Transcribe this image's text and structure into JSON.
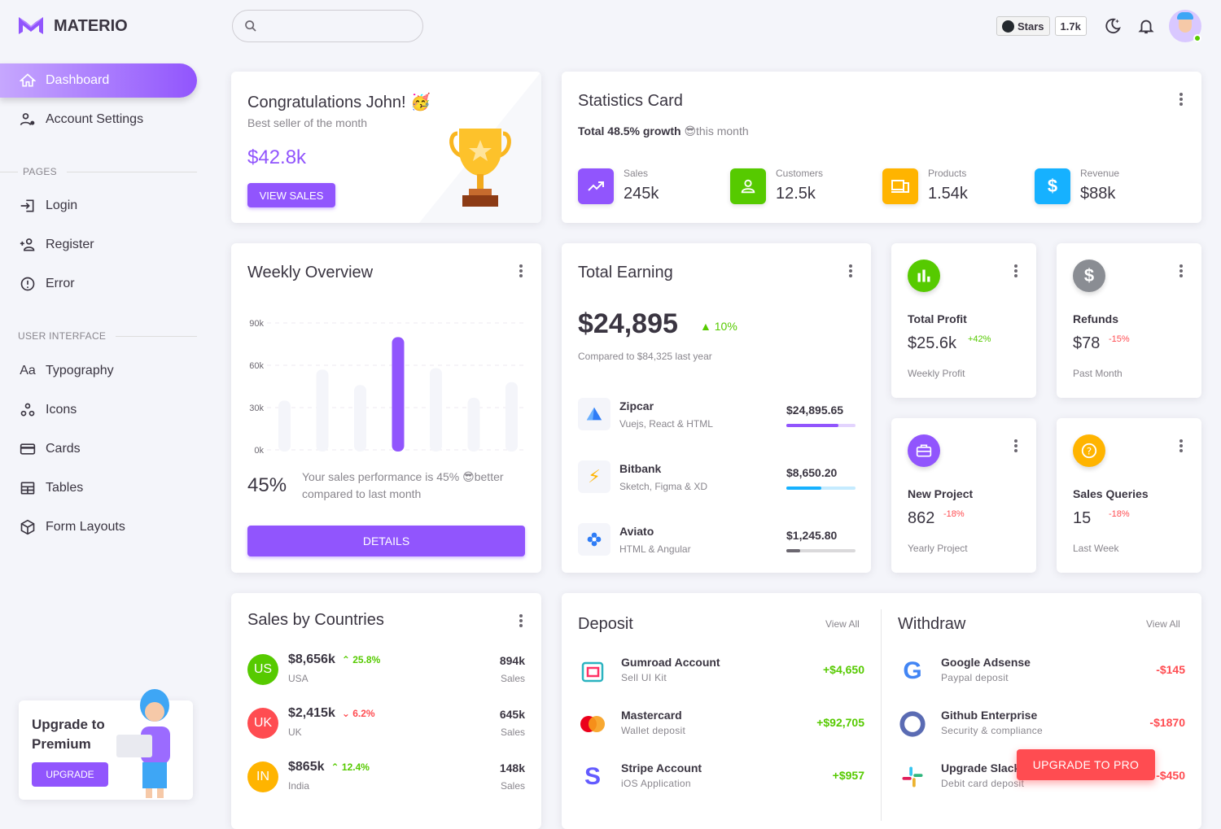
{
  "brand": {
    "name": "MATERIO"
  },
  "sidebar": {
    "items": [
      {
        "label": "Dashboard",
        "icon": "home-icon",
        "active": true
      },
      {
        "label": "Account Settings",
        "icon": "account-cog-icon"
      }
    ],
    "sections": [
      {
        "title": "PAGES",
        "items": [
          {
            "label": "Login",
            "icon": "login-icon"
          },
          {
            "label": "Register",
            "icon": "account-plus-icon"
          },
          {
            "label": "Error",
            "icon": "alert-circle-icon"
          }
        ]
      },
      {
        "title": "USER INTERFACE",
        "items": [
          {
            "label": "Typography",
            "icon": "format-letter-case-icon"
          },
          {
            "label": "Icons",
            "icon": "google-circles-icon"
          },
          {
            "label": "Cards",
            "icon": "credit-card-icon"
          },
          {
            "label": "Tables",
            "icon": "table-icon"
          },
          {
            "label": "Form Layouts",
            "icon": "cube-outline-icon"
          }
        ]
      }
    ],
    "upgrade": {
      "title": "Upgrade to Premium",
      "button": "UPGRADE"
    }
  },
  "header": {
    "search_placeholder": "",
    "github": {
      "label": "Stars",
      "count": "1.7k"
    }
  },
  "congrats": {
    "title": "Congratulations John! 🥳",
    "subtitle": "Best seller of the month",
    "amount": "$42.8k",
    "button": "VIEW SALES"
  },
  "statistics": {
    "title": "Statistics Card",
    "growth_bold": "Total 48.5% growth",
    "growth_rest": "😎this month",
    "items": [
      {
        "label": "Sales",
        "value": "245k",
        "color": "#9155FD",
        "icon": "trending-up-icon"
      },
      {
        "label": "Customers",
        "value": "12.5k",
        "color": "#56CA00",
        "icon": "account-icon"
      },
      {
        "label": "Products",
        "value": "1.54k",
        "color": "#FFB400",
        "icon": "cellphone-link-icon"
      },
      {
        "label": "Revenue",
        "value": "$88k",
        "color": "#16B1FF",
        "icon": "currency-usd-icon"
      }
    ]
  },
  "weekly": {
    "title": "Weekly Overview",
    "percent": "45%",
    "text": "Your sales performance is 45% 😎better compared to last month",
    "button": "DETAILS",
    "chart_data": {
      "type": "bar",
      "y_ticks": [
        "90k",
        "60k",
        "30k",
        "0k"
      ],
      "ylim": [
        0,
        90000
      ],
      "values": [
        35000,
        57000,
        46000,
        80000,
        58000,
        37000,
        48000
      ],
      "highlight_index": 3,
      "highlight_color": "#9155FD",
      "base_color": "#F4F5FA",
      "grid": true
    }
  },
  "earning": {
    "title": "Total Earning",
    "amount": "$24,895",
    "change": "10%",
    "compare": "Compared to $84,325 last year",
    "items": [
      {
        "name": "Zipcar",
        "sub": "Vuejs, React & HTML",
        "amount": "$24,895.65",
        "progress": 75,
        "color": "#9155FD",
        "icon": "zipcar-logo-icon"
      },
      {
        "name": "Bitbank",
        "sub": "Sketch, Figma & XD",
        "amount": "$8,650.20",
        "progress": 50,
        "color": "#16B1FF",
        "icon": "bitbank-logo-icon"
      },
      {
        "name": "Aviato",
        "sub": "HTML & Angular",
        "amount": "$1,245.80",
        "progress": 20,
        "color": "#6b6770",
        "icon": "aviato-logo-icon"
      }
    ]
  },
  "mini": [
    {
      "title": "Total Profit",
      "value": "$25.6k",
      "change": "+42%",
      "trend": "up",
      "sub": "Weekly Profit",
      "color": "#56CA00",
      "icon": "poll-icon"
    },
    {
      "title": "Refunds",
      "value": "$78",
      "change": "-15%",
      "trend": "down",
      "sub": "Past Month",
      "color": "#8A8D93",
      "icon": "currency-usd-icon"
    },
    {
      "title": "New Project",
      "value": "862",
      "change": "-18%",
      "trend": "down",
      "sub": "Yearly Project",
      "color": "#9155FD",
      "icon": "briefcase-icon"
    },
    {
      "title": "Sales Queries",
      "value": "15",
      "change": "-18%",
      "trend": "down",
      "sub": "Last Week",
      "color": "#FFB400",
      "icon": "help-circle-icon"
    }
  ],
  "countries": {
    "title": "Sales by Countries",
    "rows": [
      {
        "code": "US",
        "amount": "$8,656k",
        "change": "25.8%",
        "trend": "up",
        "country": "USA",
        "sales": "894k",
        "sales_label": "Sales",
        "color": "#56CA00"
      },
      {
        "code": "UK",
        "amount": "$2,415k",
        "change": "6.2%",
        "trend": "down",
        "country": "UK",
        "sales": "645k",
        "sales_label": "Sales",
        "color": "#FF4C51"
      },
      {
        "code": "IN",
        "amount": "$865k",
        "change": "12.4%",
        "trend": "up",
        "country": "India",
        "sales": "148k",
        "sales_label": "Sales",
        "color": "#FFB400"
      }
    ]
  },
  "deposit": {
    "title": "Deposit",
    "view_all": "View All",
    "rows": [
      {
        "name": "Gumroad Account",
        "sub": "Sell UI Kit",
        "amount": "+$4,650",
        "icon": "gumroad-logo-icon"
      },
      {
        "name": "Mastercard",
        "sub": "Wallet deposit",
        "amount": "+$92,705",
        "icon": "mastercard-logo-icon"
      },
      {
        "name": "Stripe Account",
        "sub": "iOS Application",
        "amount": "+$957",
        "icon": "stripe-logo-icon"
      }
    ]
  },
  "withdraw": {
    "title": "Withdraw",
    "view_all": "View All",
    "rows": [
      {
        "name": "Google Adsense",
        "sub": "Paypal deposit",
        "amount": "-$145",
        "icon": "google-logo-icon"
      },
      {
        "name": "Github Enterprise",
        "sub": "Security & compliance",
        "amount": "-$1870",
        "icon": "github-logo-icon"
      },
      {
        "name": "Upgrade Slack Plan",
        "sub": "Debit card deposit",
        "amount": "-$450",
        "icon": "slack-logo-icon"
      }
    ]
  },
  "upgrade_pro": {
    "label": "UPGRADE TO PRO"
  }
}
